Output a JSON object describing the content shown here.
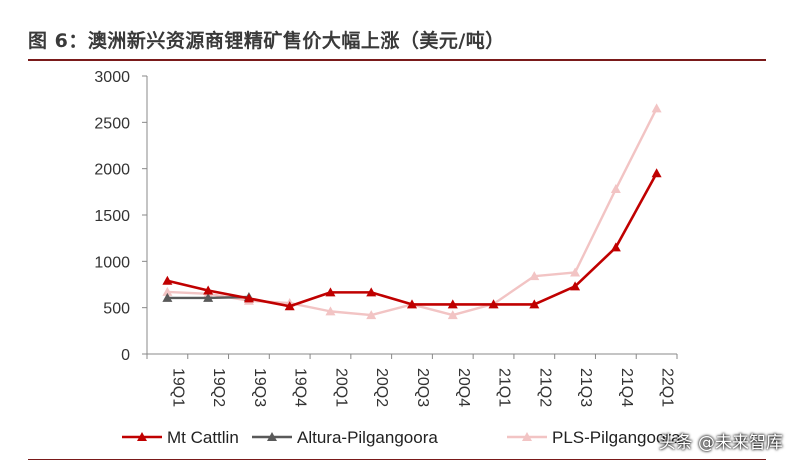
{
  "title": "图 6：澳洲新兴资源商锂精矿售价大幅上涨（美元/吨）",
  "watermark": "头条 @未来智库",
  "chart_data": {
    "type": "line",
    "title": "图 6：澳洲新兴资源商锂精矿售价大幅上涨（美元/吨）",
    "xlabel": "",
    "ylabel": "",
    "categories": [
      "19Q1",
      "19Q2",
      "19Q3",
      "19Q4",
      "20Q1",
      "20Q2",
      "20Q3",
      "20Q4",
      "21Q1",
      "21Q2",
      "21Q3",
      "21Q4",
      "22Q1"
    ],
    "y_ticks": [
      "0",
      "500",
      "1000",
      "1500",
      "2000",
      "2500",
      "3000"
    ],
    "ylim": [
      0,
      3000
    ],
    "grid": false,
    "legend": "bottom",
    "series": [
      {
        "name": "Mt Cattlin",
        "color": "#c00000",
        "values": [
          790,
          685,
          600,
          515,
          665,
          665,
          535,
          535,
          535,
          535,
          730,
          1150,
          1950
        ]
      },
      {
        "name": "Altura-Pilgangoora",
        "color": "#595959",
        "values": [
          605,
          605,
          615,
          null,
          null,
          null,
          null,
          null,
          null,
          null,
          null,
          null,
          null
        ]
      },
      {
        "name": "PLS-Pilgangoora",
        "color": "#f2c4c4",
        "values": [
          670,
          650,
          575,
          550,
          460,
          420,
          535,
          420,
          540,
          840,
          880,
          1780,
          2650
        ]
      }
    ]
  }
}
